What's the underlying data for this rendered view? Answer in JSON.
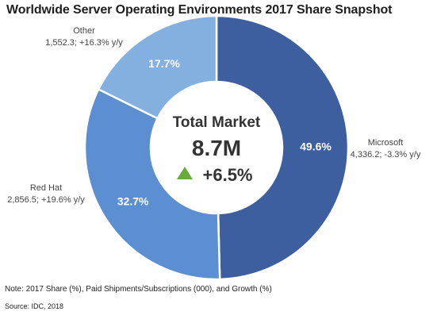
{
  "chart_data": {
    "type": "pie",
    "style": "donut",
    "title": "Worldwide Server Operating Environments 2017 Share Snapshot",
    "center": {
      "title": "Total Market",
      "value": "8.7M",
      "growth": "+6.5%",
      "growth_direction": "up"
    },
    "slices": [
      {
        "name": "Microsoft",
        "share": 49.6,
        "share_label": "49.6%",
        "detail": "4,336.2; -3.3% y/y",
        "color": "#3d5f9f"
      },
      {
        "name": "Red Hat",
        "share": 32.7,
        "share_label": "32.7%",
        "detail": "2,856.5; +19.6% y/y",
        "color": "#5b8fd1"
      },
      {
        "name": "Other",
        "share": 17.7,
        "share_label": "17.7%",
        "detail": "1,552.3; +16.3% y/y",
        "color": "#84b0e0"
      }
    ]
  },
  "colors": {
    "growth_arrow": "#6aaa3a",
    "center_fill": "#ffffff"
  },
  "footer": {
    "note": "Note: 2017 Share (%), Paid Shipments/Subscriptions (000), and Growth (%)",
    "source": "Source: IDC, 2018"
  }
}
